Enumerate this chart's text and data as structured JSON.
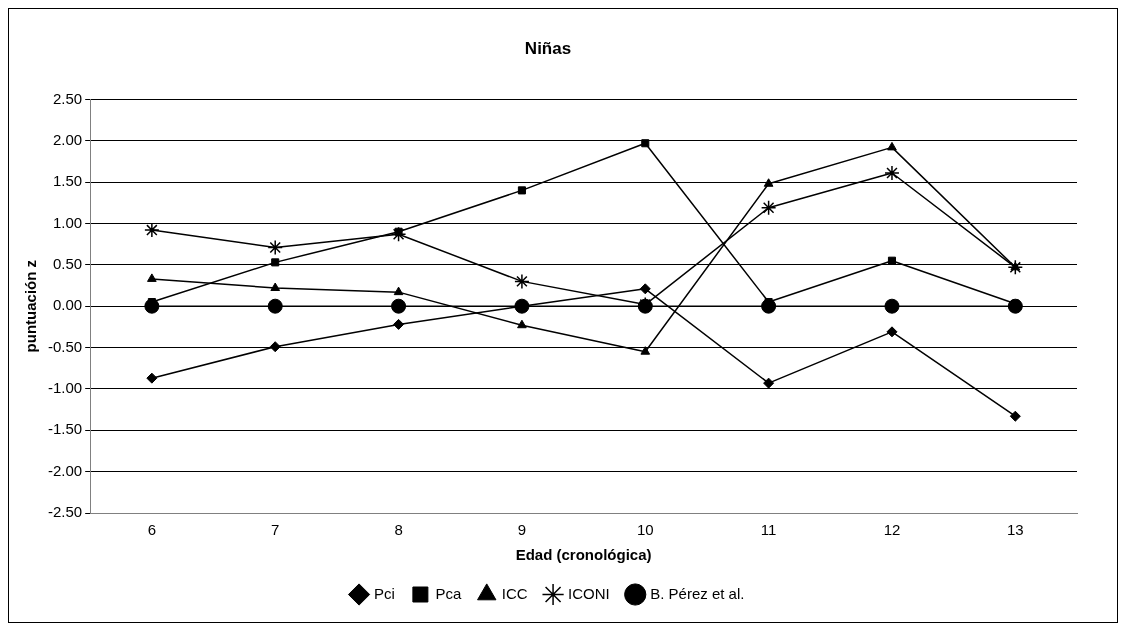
{
  "chart_data": {
    "type": "line",
    "title": "Niñas",
    "xlabel": "Edad (cronológica)",
    "ylabel": "puntuación z",
    "categories": [
      "6",
      "7",
      "8",
      "9",
      "10",
      "11",
      "12",
      "13"
    ],
    "series": [
      {
        "name": "Pci",
        "color": "#000000",
        "marker": "diamond",
        "values": [
          -0.87,
          -0.49,
          -0.22,
          0.0,
          0.21,
          -0.93,
          -0.31,
          -1.33
        ]
      },
      {
        "name": "Pca",
        "color": "#000000",
        "marker": "square",
        "values": [
          0.05,
          0.53,
          0.9,
          1.4,
          1.97,
          0.05,
          0.55,
          0.03
        ]
      },
      {
        "name": "ICC",
        "color": "#000000",
        "marker": "triangle",
        "values": [
          0.33,
          0.22,
          0.17,
          -0.23,
          -0.55,
          1.48,
          1.92,
          0.47
        ]
      },
      {
        "name": "ICONI",
        "color": "#000000",
        "marker": "cross",
        "values": [
          0.92,
          0.71,
          0.87,
          0.3,
          0.02,
          1.19,
          1.61,
          0.47
        ]
      },
      {
        "name": "B. Pérez et al.",
        "color": "#000000",
        "marker": "circle",
        "values": [
          0,
          0,
          0,
          0,
          0,
          0,
          0,
          0
        ]
      }
    ],
    "ylim": [
      -2.5,
      2.5
    ],
    "yticks": [
      {
        "value": -2.5,
        "label": "-2.50"
      },
      {
        "value": -2,
        "label": "-2.00"
      },
      {
        "value": -1.5,
        "label": "-1.50"
      },
      {
        "value": -1,
        "label": "-1.00"
      },
      {
        "value": -0.5,
        "label": "-0.50"
      },
      {
        "value": 0,
        "label": "0.00"
      },
      {
        "value": 0.5,
        "label": "0.50"
      },
      {
        "value": 1,
        "label": "1.00"
      },
      {
        "value": 1.5,
        "label": "1.50"
      },
      {
        "value": 2,
        "label": "2.00"
      },
      {
        "value": 2.5,
        "label": "2.50"
      }
    ],
    "grid": "y",
    "legend": "bottom",
    "line_style": "solid"
  }
}
